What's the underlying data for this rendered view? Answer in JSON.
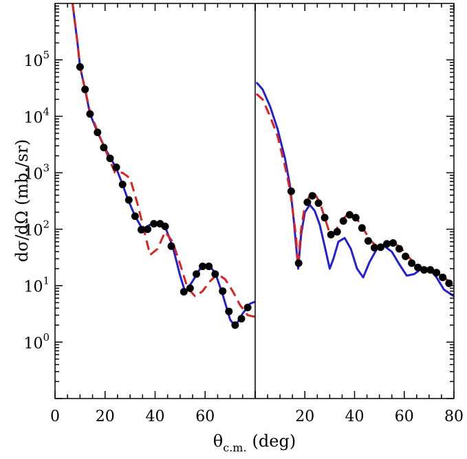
{
  "chart_data": {
    "type": "line",
    "ylabel": "dσ/dΩ (mb./sr)",
    "xlabel_main": "θ",
    "xlabel_sub": "c.m.",
    "xlabel_unit": "(deg)",
    "y_scale": "log",
    "ylim": [
      0.1,
      1000000
    ],
    "y_tick_labels": [
      {
        "base": "10",
        "exp": "5",
        "value": 100000
      },
      {
        "base": "10",
        "exp": "4",
        "value": 10000
      },
      {
        "base": "10",
        "exp": "3",
        "value": 1000
      },
      {
        "base": "10",
        "exp": "2",
        "value": 100
      },
      {
        "base": "10",
        "exp": "1",
        "value": 10
      },
      {
        "base": "10",
        "exp": "0",
        "value": 1
      }
    ],
    "colors": {
      "solid": "#1f1fdc",
      "dashed": "#e0201c",
      "points": "#000000"
    },
    "panels": [
      {
        "name": "left",
        "xlim": [
          0,
          80
        ],
        "x_ticks": [
          0,
          20,
          40,
          60
        ],
        "x_tick_labels": [
          "0",
          "20",
          "40",
          "60"
        ],
        "points": [
          [
            10,
            75000
          ],
          [
            12,
            30000
          ],
          [
            14,
            11000
          ],
          [
            17,
            5200
          ],
          [
            19.5,
            2800
          ],
          [
            22,
            1800
          ],
          [
            24.5,
            1250
          ],
          [
            27,
            620
          ],
          [
            29.5,
            330
          ],
          [
            32,
            170
          ],
          [
            34.5,
            98
          ],
          [
            37,
            100
          ],
          [
            39.5,
            125
          ],
          [
            42,
            125
          ],
          [
            44,
            112
          ],
          [
            46.5,
            50
          ],
          [
            51.5,
            7.8
          ],
          [
            54,
            9
          ],
          [
            56.5,
            16
          ],
          [
            59,
            22
          ],
          [
            61.5,
            22
          ],
          [
            64,
            16
          ],
          [
            67,
            8
          ],
          [
            69.5,
            3.5
          ],
          [
            72,
            2
          ],
          [
            74.5,
            2.6
          ],
          [
            77,
            4.1
          ]
        ],
        "series": [
          {
            "style": "solid",
            "points": [
              [
                7,
                1000000
              ],
              [
                9,
                200000
              ],
              [
                10,
                75000
              ],
              [
                12,
                30000
              ],
              [
                14,
                11000
              ],
              [
                17,
                5200
              ],
              [
                20,
                2700
              ],
              [
                24.5,
                1200
              ],
              [
                27,
                620
              ],
              [
                29,
                350
              ],
              [
                32,
                170
              ],
              [
                35,
                100
              ],
              [
                38,
                120
              ],
              [
                41,
                130
              ],
              [
                44,
                110
              ],
              [
                47,
                50
              ],
              [
                50,
                15
              ],
              [
                52,
                7.8
              ],
              [
                55,
                12
              ],
              [
                58,
                20
              ],
              [
                61,
                24
              ],
              [
                64,
                17
              ],
              [
                67,
                7
              ],
              [
                70,
                2.5
              ],
              [
                72,
                1.9
              ],
              [
                75,
                3.2
              ],
              [
                78,
                4.8
              ],
              [
                80,
                5.2
              ]
            ]
          },
          {
            "style": "dashed",
            "points": [
              [
                7,
                1000000
              ],
              [
                9,
                200000
              ],
              [
                10,
                75000
              ],
              [
                12,
                30000
              ],
              [
                14,
                12000
              ],
              [
                17,
                5500
              ],
              [
                20,
                2600
              ],
              [
                22,
                1600
              ],
              [
                24,
                1000
              ],
              [
                27,
                1000
              ],
              [
                30,
                800
              ],
              [
                33,
                280
              ],
              [
                36,
                80
              ],
              [
                38,
                35
              ],
              [
                41,
                45
              ],
              [
                44,
                90
              ],
              [
                47,
                60
              ],
              [
                50,
                24
              ],
              [
                53,
                9
              ],
              [
                56,
                6.5
              ],
              [
                59,
                8
              ],
              [
                62,
                12
              ],
              [
                65,
                16
              ],
              [
                68,
                13
              ],
              [
                71,
                8
              ],
              [
                74,
                4.5
              ],
              [
                77,
                3
              ],
              [
                80,
                2.8
              ]
            ]
          }
        ]
      },
      {
        "name": "right",
        "xlim": [
          0,
          80
        ],
        "x_ticks": [
          20,
          40,
          60,
          80
        ],
        "x_tick_labels": [
          "20",
          "40",
          "60",
          "80"
        ],
        "points": [
          [
            14.5,
            470
          ],
          [
            17.5,
            25
          ],
          [
            21,
            300
          ],
          [
            23,
            390
          ],
          [
            25.5,
            290
          ],
          [
            28,
            160
          ],
          [
            30.5,
            80
          ],
          [
            33,
            90
          ],
          [
            35.5,
            140
          ],
          [
            38,
            180
          ],
          [
            40.5,
            160
          ],
          [
            43,
            105
          ],
          [
            45.5,
            62
          ],
          [
            48,
            47
          ],
          [
            50.5,
            48
          ],
          [
            53,
            55
          ],
          [
            55.5,
            57
          ],
          [
            58,
            45
          ],
          [
            60.5,
            33
          ],
          [
            63,
            25
          ],
          [
            65.5,
            21
          ],
          [
            68,
            19
          ],
          [
            70.5,
            19
          ],
          [
            73,
            17
          ],
          [
            75.5,
            14
          ],
          [
            78,
            11
          ]
        ],
        "series": [
          {
            "style": "solid",
            "points": [
              [
                0.5,
                40000
              ],
              [
                3,
                30000
              ],
              [
                6,
                15000
              ],
              [
                9,
                6000
              ],
              [
                12,
                1800
              ],
              [
                14,
                600
              ],
              [
                15.5,
                150
              ],
              [
                16.5,
                50
              ],
              [
                17.3,
                20
              ],
              [
                18.5,
                80
              ],
              [
                20,
                200
              ],
              [
                22,
                270
              ],
              [
                24,
                210
              ],
              [
                26,
                120
              ],
              [
                28,
                50
              ],
              [
                30,
                20
              ],
              [
                31.5,
                30
              ],
              [
                33.5,
                60
              ],
              [
                36,
                70
              ],
              [
                38.5,
                45
              ],
              [
                41,
                20
              ],
              [
                43.5,
                14
              ],
              [
                46,
                26
              ],
              [
                49,
                45
              ],
              [
                52,
                50
              ],
              [
                55,
                40
              ],
              [
                58,
                24
              ],
              [
                61,
                15
              ],
              [
                64,
                16
              ],
              [
                67,
                20
              ],
              [
                70,
                20
              ],
              [
                73,
                14
              ],
              [
                76,
                8.5
              ],
              [
                80,
                6.5
              ]
            ]
          },
          {
            "style": "dashed",
            "points": [
              [
                0.5,
                25000
              ],
              [
                3,
                20000
              ],
              [
                6,
                10000
              ],
              [
                9,
                4500
              ],
              [
                12,
                1300
              ],
              [
                14,
                500
              ],
              [
                15.5,
                160
              ],
              [
                16.5,
                70
              ],
              [
                17.2,
                22
              ],
              [
                18.5,
                100
              ],
              [
                20,
                260
              ],
              [
                22,
                400
              ],
              [
                24,
                420
              ],
              [
                26,
                300
              ],
              [
                28,
                160
              ],
              [
                30,
                85
              ],
              [
                32,
                85
              ],
              [
                34,
                130
              ],
              [
                37,
                180
              ],
              [
                40,
                170
              ],
              [
                43,
                115
              ],
              [
                46,
                65
              ],
              [
                49,
                50
              ],
              [
                52,
                52
              ],
              [
                55,
                58
              ],
              [
                58,
                50
              ],
              [
                61,
                35
              ],
              [
                64,
                25
              ],
              [
                67,
                20
              ],
              [
                70,
                19
              ],
              [
                73,
                17
              ],
              [
                76,
                14
              ],
              [
                79,
                11
              ]
            ]
          }
        ]
      }
    ]
  }
}
